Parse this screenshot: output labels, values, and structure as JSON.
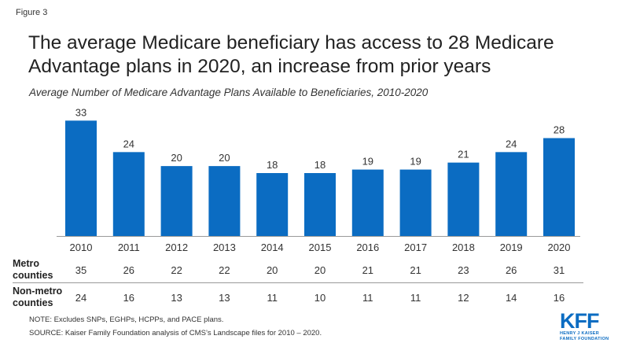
{
  "figure_label": "Figure 3",
  "title": "The average Medicare beneficiary has access to 28 Medicare Advantage plans in 2020, an increase from prior years",
  "subtitle": "Average Number of Medicare Advantage Plans Available to Beneficiaries, 2010-2020",
  "colors": {
    "bar": "#0b6cc2",
    "axis": "#9a9a9a",
    "logo": "#0b6cc2"
  },
  "chart_data": {
    "type": "bar",
    "categories": [
      "2010",
      "2011",
      "2012",
      "2013",
      "2014",
      "2015",
      "2016",
      "2017",
      "2018",
      "2019",
      "2020"
    ],
    "values": [
      33,
      24,
      20,
      20,
      18,
      18,
      19,
      19,
      21,
      24,
      28
    ],
    "data_labels": [
      "33",
      "24",
      "20",
      "20",
      "18",
      "18",
      "19",
      "19",
      "21",
      "24",
      "28"
    ],
    "ylim": [
      0,
      36
    ],
    "grid": false,
    "legend": "none"
  },
  "table": {
    "metro": {
      "label_line1": "Metro",
      "label_line2": "counties",
      "values": [
        "35",
        "26",
        "22",
        "22",
        "20",
        "20",
        "21",
        "21",
        "23",
        "26",
        "31"
      ]
    },
    "nonmetro": {
      "label_line1": "Non-metro",
      "label_line2": "counties",
      "values": [
        "24",
        "16",
        "13",
        "13",
        "11",
        "10",
        "11",
        "11",
        "12",
        "14",
        "16"
      ]
    }
  },
  "notes": {
    "note": "NOTE: Excludes SNPs, EGHPs, HCPPs, and PACE plans.",
    "source": "SOURCE: Kaiser Family Foundation analysis of CMS’s Landscape files for 2010 – 2020."
  },
  "logo": {
    "mark": "KFF",
    "line1": "HENRY J KAISER",
    "line2": "FAMILY FOUNDATION"
  }
}
